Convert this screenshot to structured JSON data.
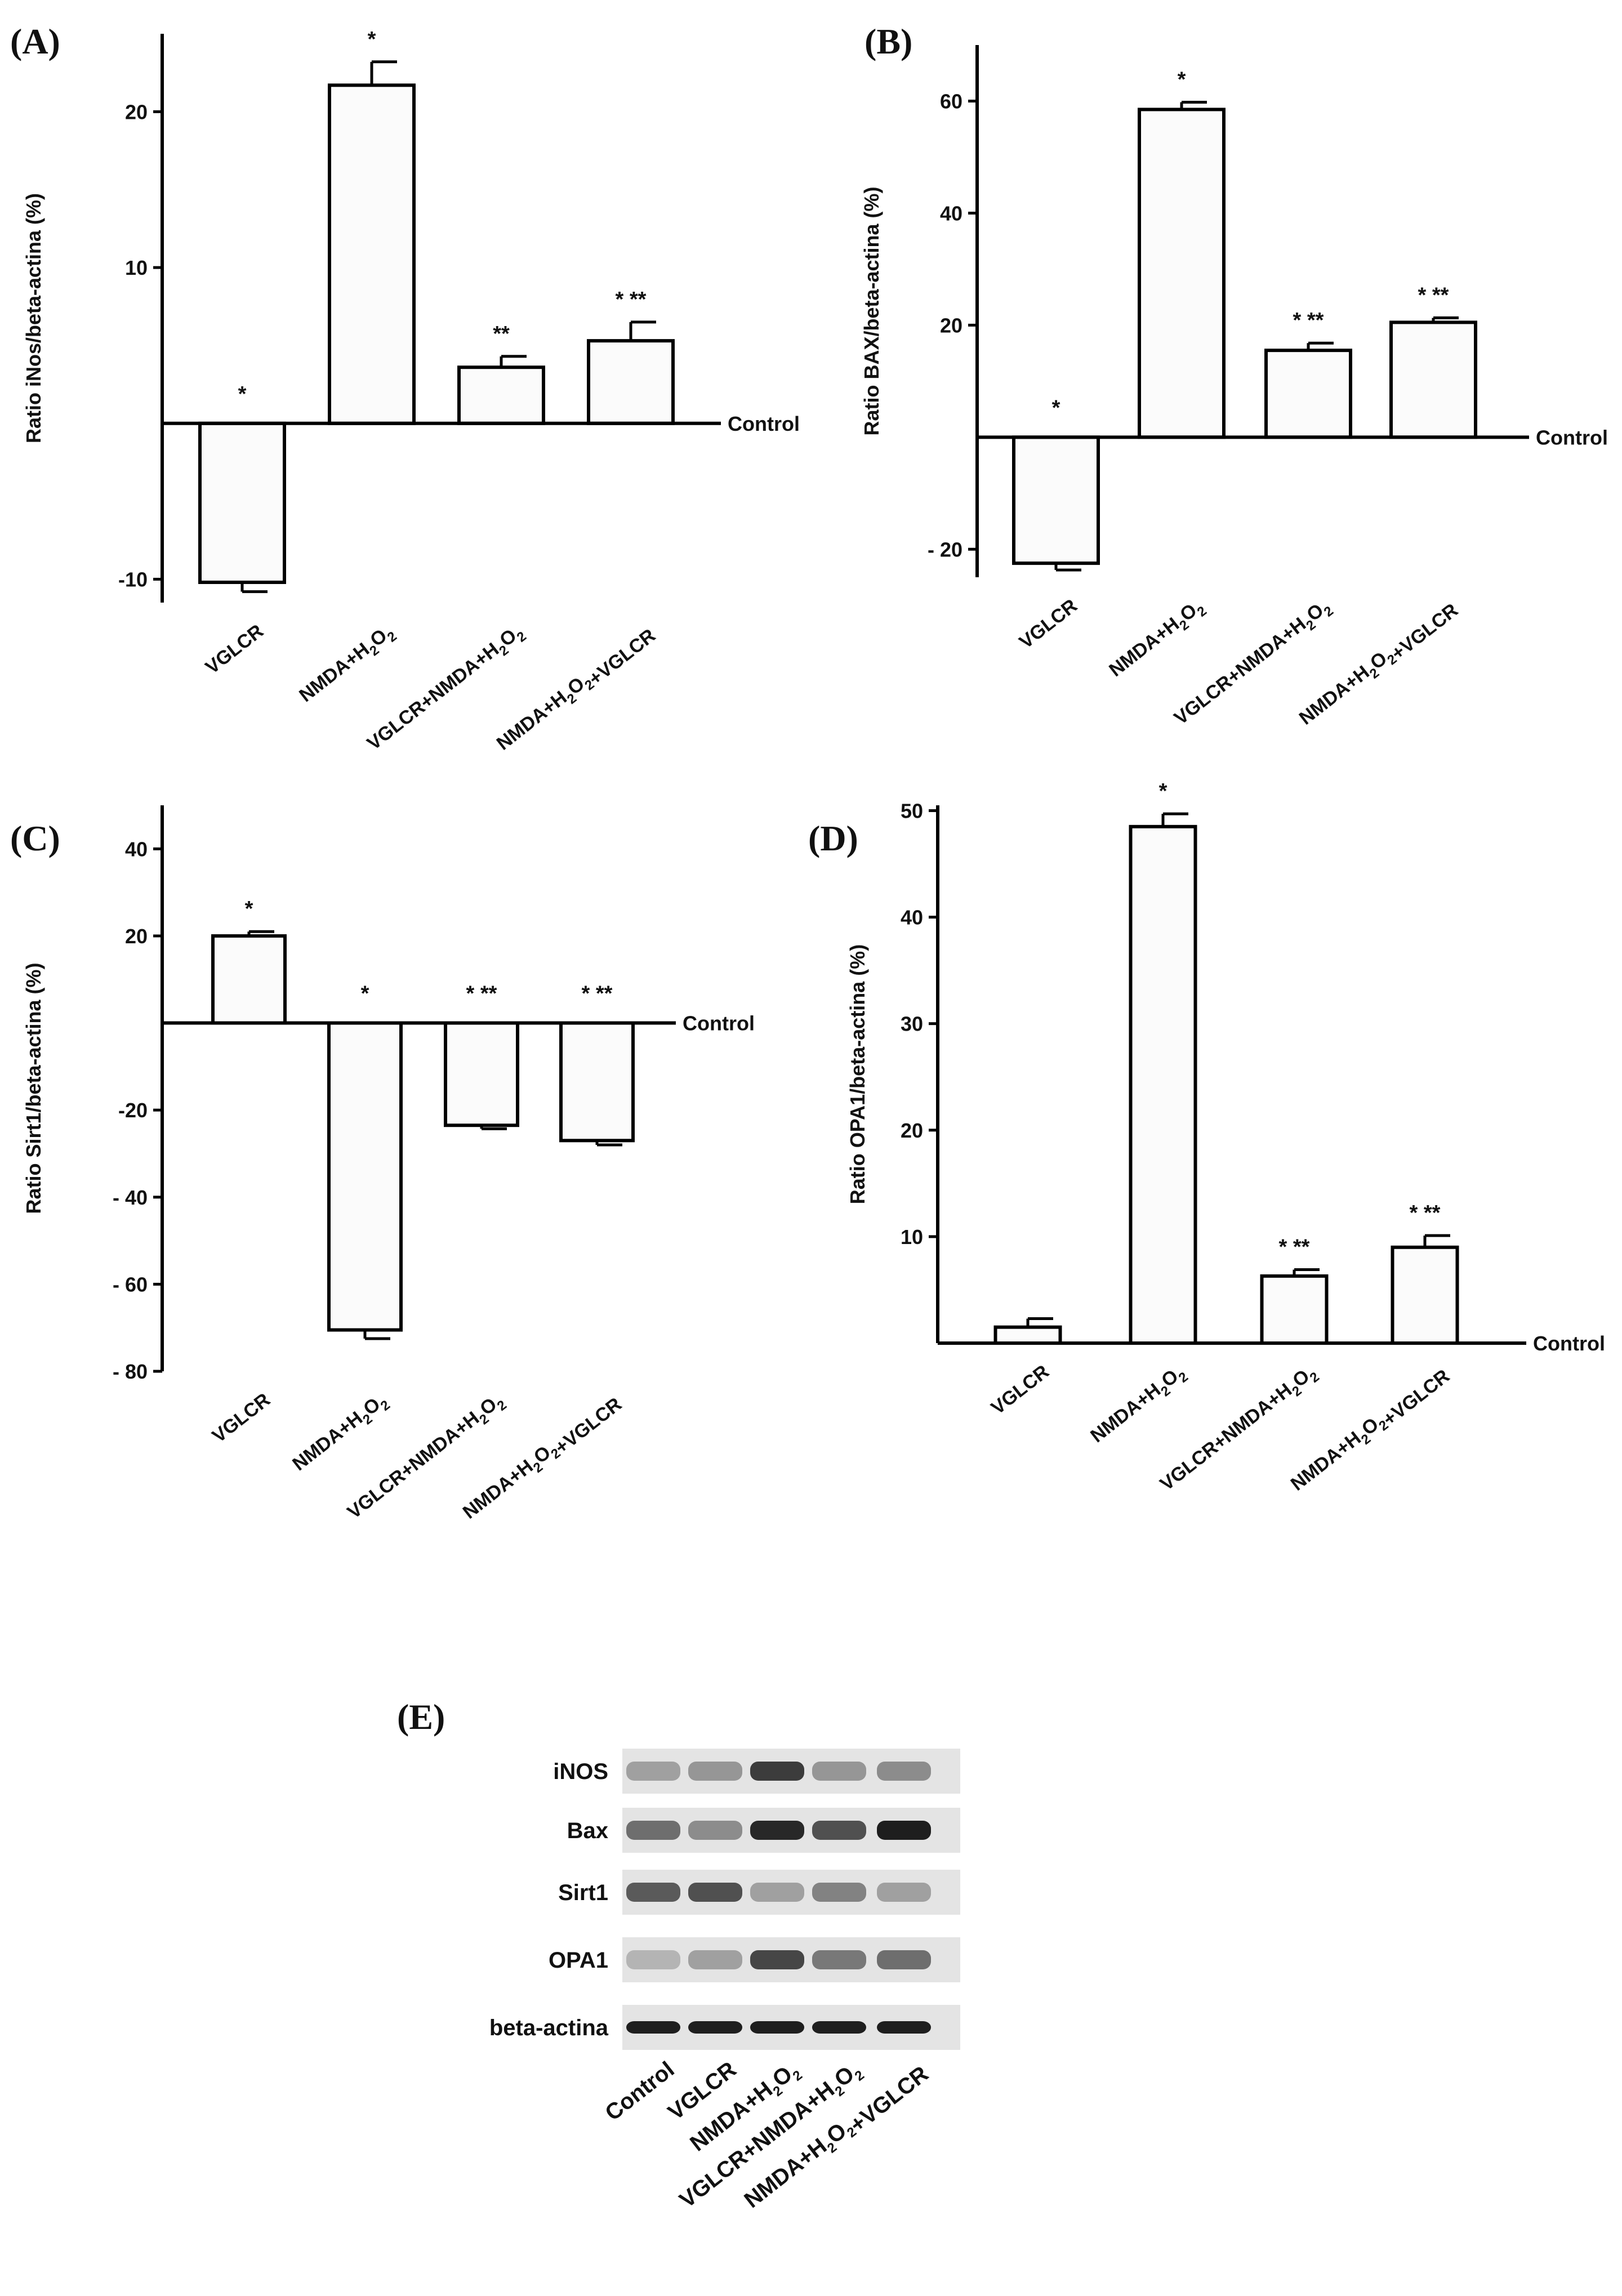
{
  "chart_data": [
    {
      "id": "A",
      "type": "bar",
      "panel_label": "(A)",
      "ylabel": "Ratio iNos/beta-actina (%)",
      "baseline_label": "Control",
      "ylim": [
        -11.5,
        25
      ],
      "yticks": [
        20,
        10,
        -10
      ],
      "ytick_labels": [
        "20",
        "10",
        "-10"
      ],
      "categories": [
        "VGLCR",
        "NMDA+H2O2",
        "VGLCR+NMDA+H2O2",
        "NMDA+H2O2+VGLCR"
      ],
      "values": [
        -10.2,
        21.7,
        3.6,
        5.3
      ],
      "errors": [
        0.6,
        1.5,
        0.7,
        1.2
      ],
      "significance": [
        "*",
        "*",
        "**",
        "* **"
      ]
    },
    {
      "id": "B",
      "type": "bar",
      "panel_label": "(B)",
      "ylabel": "Ratio BAX/beta-actina (%)",
      "baseline_label": "Control",
      "ylim": [
        -25,
        70
      ],
      "yticks": [
        60,
        40,
        20,
        -20
      ],
      "ytick_labels": [
        "60",
        "40",
        "20",
        "- 20"
      ],
      "categories": [
        "VGLCR",
        "NMDA+H2O2",
        "VGLCR+NMDA+H2O2",
        "NMDA+H2O2+VGLCR"
      ],
      "values": [
        -22.5,
        58.5,
        15.5,
        20.5
      ],
      "errors": [
        1.2,
        1.3,
        1.3,
        0.8
      ],
      "significance": [
        "*",
        "*",
        "* **",
        "* **"
      ]
    },
    {
      "id": "C",
      "type": "bar",
      "panel_label": "(C)",
      "ylabel": "Ratio Sirt1/beta-actina (%)",
      "baseline_label": "Control",
      "ylim": [
        -80,
        50
      ],
      "yticks": [
        40,
        20,
        -20,
        -40,
        -60,
        -80
      ],
      "ytick_labels": [
        "40",
        "20",
        "-20",
        "- 40",
        "- 60",
        "- 80"
      ],
      "categories": [
        "VGLCR",
        "NMDA+H2O2",
        "VGLCR+NMDA+H2O2",
        "NMDA+H2O2+VGLCR"
      ],
      "values": [
        20,
        -70.5,
        -23.5,
        -27
      ],
      "errors": [
        1,
        2,
        0.8,
        1
      ],
      "significance": [
        "*",
        "*",
        "* **",
        "* **"
      ]
    },
    {
      "id": "D",
      "type": "bar",
      "panel_label": "(D)",
      "ylabel": "Ratio OPA1/beta-actina (%)",
      "baseline_label": "Control",
      "ylim": [
        0,
        50.5
      ],
      "yticks": [
        50,
        40,
        30,
        20,
        10
      ],
      "ytick_labels": [
        "50",
        "40",
        "30",
        "20",
        "10"
      ],
      "categories": [
        "VGLCR",
        "NMDA+H2O2",
        "VGLCR+NMDA+H2O2",
        "NMDA+H2O2+VGLCR"
      ],
      "values": [
        1.5,
        48.5,
        6.3,
        9
      ],
      "errors": [
        0.8,
        1.2,
        0.6,
        1.1
      ],
      "significance": [
        "",
        "*",
        "* **",
        "* **"
      ]
    }
  ],
  "blot": {
    "panel_label": "(E)",
    "proteins": [
      "iNOS",
      "Bax",
      "Sirt1",
      "OPA1",
      "beta-actina"
    ],
    "lanes": [
      "Control",
      "VGLCR",
      "NMDA+H2O2",
      "VGLCR+NMDA+H2O2",
      "NMDA+H2O2+VGLCR"
    ],
    "band_intensity": [
      [
        0.3,
        0.35,
        0.8,
        0.35,
        0.4
      ],
      [
        0.55,
        0.4,
        0.9,
        0.7,
        0.95
      ],
      [
        0.65,
        0.7,
        0.3,
        0.45,
        0.3
      ],
      [
        0.2,
        0.3,
        0.75,
        0.5,
        0.55
      ],
      [
        0.95,
        0.95,
        0.95,
        0.95,
        0.95
      ]
    ]
  }
}
